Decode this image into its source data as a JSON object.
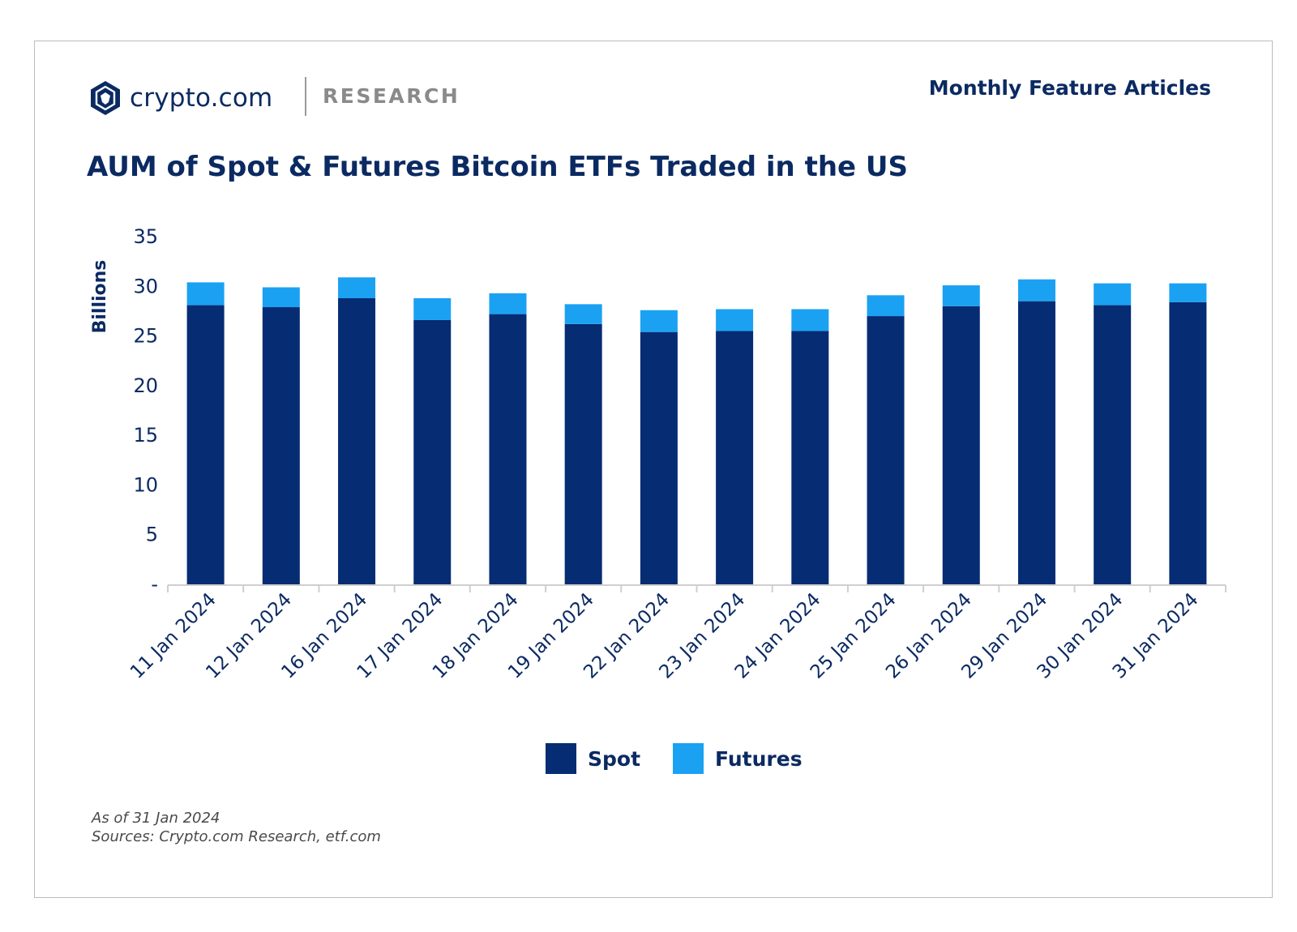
{
  "header": {
    "brand": "crypto.com",
    "section": "RESEARCH",
    "series": "Monthly Feature Articles",
    "logo_icon": "crypto-com-lion-shield-icon"
  },
  "footer": {
    "as_of": "As of 31 Jan 2024",
    "sources": "Sources: Crypto.com Research, etf.com"
  },
  "colors": {
    "spot": "#062c73",
    "futures": "#1ba1f2",
    "text": "#0b2a62",
    "axis": "#cfcfcf"
  },
  "chart_data": {
    "type": "bar",
    "stacked": true,
    "title": "AUM of Spot & Futures Bitcoin ETFs Traded in the US",
    "ylabel": "Billions",
    "xlabel": "",
    "ylim": [
      0,
      35
    ],
    "yticks": [
      0,
      5,
      10,
      15,
      20,
      25,
      30,
      35
    ],
    "ytick_labels": [
      "-",
      "5",
      "10",
      "15",
      "20",
      "25",
      "30",
      "35"
    ],
    "grid": false,
    "legend_position": "bottom-center",
    "categories": [
      "11 Jan 2024",
      "12 Jan 2024",
      "16 Jan 2024",
      "17 Jan 2024",
      "18 Jan 2024",
      "19 Jan 2024",
      "22 Jan 2024",
      "23 Jan 2024",
      "24 Jan 2024",
      "25 Jan 2024",
      "26 Jan 2024",
      "29 Jan 2024",
      "30 Jan 2024",
      "31 Jan 2024"
    ],
    "series": [
      {
        "name": "Spot",
        "color": "#062c73",
        "values": [
          28.1,
          27.9,
          28.8,
          26.6,
          27.2,
          26.2,
          25.4,
          25.5,
          25.5,
          27.0,
          28.0,
          28.5,
          28.1,
          28.4
        ]
      },
      {
        "name": "Futures",
        "color": "#1ba1f2",
        "values": [
          2.3,
          2.0,
          2.1,
          2.2,
          2.1,
          2.0,
          2.2,
          2.2,
          2.2,
          2.1,
          2.1,
          2.2,
          2.2,
          1.9
        ]
      }
    ]
  }
}
